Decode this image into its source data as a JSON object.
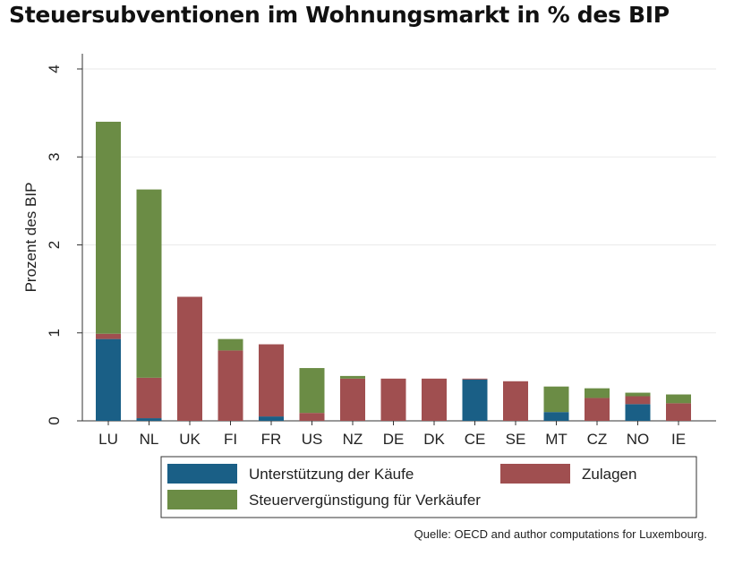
{
  "chart_data": {
    "type": "bar",
    "stacked": true,
    "title": "Steuersubventionen im Wohnungsmarkt in % des BIP",
    "ylabel": "Prozent des BIP",
    "xlabel": "",
    "ylim": [
      0,
      4
    ],
    "yticks": [
      0,
      1,
      2,
      3,
      4
    ],
    "grid": true,
    "legend_position": "bottom",
    "categories": [
      "LU",
      "NL",
      "UK",
      "FI",
      "FR",
      "US",
      "NZ",
      "DE",
      "DK",
      "CE",
      "SE",
      "MT",
      "CZ",
      "NO",
      "IE"
    ],
    "series": [
      {
        "name": "Unterstützung der Käufe",
        "color": "#1a5f86",
        "values": [
          0.93,
          0.03,
          0,
          0,
          0.05,
          0,
          0,
          0,
          0,
          0.47,
          0,
          0.1,
          0,
          0.19,
          0
        ]
      },
      {
        "name": "Zulagen",
        "color": "#a04f50",
        "values": [
          0.06,
          0.46,
          1.41,
          0.8,
          0.82,
          0.09,
          0.48,
          0.48,
          0.48,
          0.01,
          0.45,
          0,
          0.26,
          0.09,
          0.2
        ]
      },
      {
        "name": "Steuervergünstigung für Verkäufer",
        "color": "#6b8c45",
        "values": [
          2.41,
          2.14,
          0,
          0.13,
          0,
          0.51,
          0.03,
          0,
          0,
          0,
          0,
          0.29,
          0.11,
          0.04,
          0.1
        ]
      }
    ],
    "source": "Quelle: OECD and author computations for Luxembourg."
  }
}
